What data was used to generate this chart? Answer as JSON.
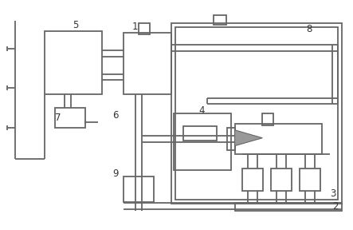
{
  "bg_color": "#ffffff",
  "line_color": "#666666",
  "lw": 1.3,
  "label_color": "#333333",
  "label_fontsize": 8.5
}
